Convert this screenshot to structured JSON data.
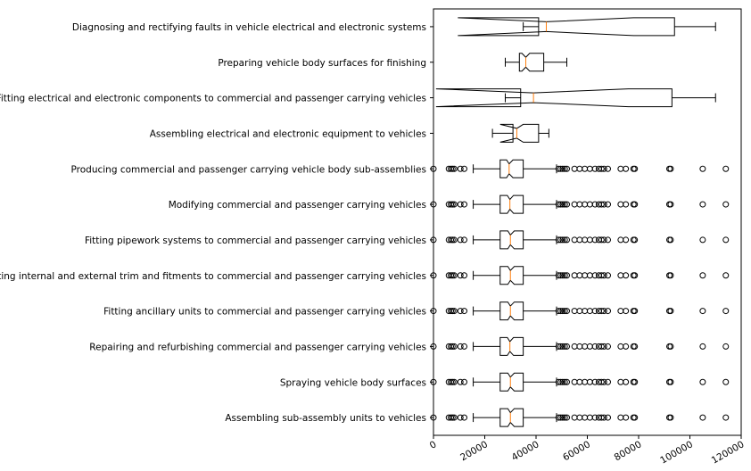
{
  "chart_data": {
    "type": "boxplot",
    "orientation": "horizontal",
    "notched": true,
    "xlim": [
      0,
      120000
    ],
    "x_ticks": [
      0,
      20000,
      40000,
      60000,
      80000,
      100000,
      120000
    ],
    "x_tick_labels": [
      "0",
      "20000",
      "40000",
      "60000",
      "80000",
      "100000",
      "120000"
    ],
    "x_tick_rotation": 30,
    "grid": false,
    "legend": "none",
    "colors": {
      "box": "#000000",
      "median": "#ff7f0e",
      "flier": "#000000"
    },
    "categories": [
      "Diagnosing and rectifying faults in vehicle electrical and electronic systems",
      "Preparing vehicle body surfaces for finishing",
      "Fitting electrical and electronic components to commercial and passenger carrying vehicles",
      "Assembling electrical and electronic equipment to vehicles",
      "Producing commercial and passenger carrying vehicle body sub-assemblies",
      "Modifying commercial and passenger carrying vehicles",
      "Fitting pipework systems to commercial and passenger carrying vehicles",
      "Fitting internal and external trim and fitments to commercial and passenger carrying vehicles",
      "Fitting ancillary units to commercial and passenger carrying vehicles",
      "Repairing and refurbishing commercial and passenger carrying vehicles",
      "Spraying vehicle body surfaces",
      "Assembling sub-assembly units to vehicles"
    ],
    "boxes": [
      {
        "whislo": 35000,
        "q1": 41000,
        "med": 44000,
        "q3": 94000,
        "whishi": 110000,
        "notch_lo": 9500,
        "notch_hi": 78000,
        "fliers": []
      },
      {
        "whislo": 28000,
        "q1": 33500,
        "med": 36000,
        "q3": 43000,
        "whishi": 52000,
        "notch_lo": 34500,
        "notch_hi": 37500,
        "fliers": []
      },
      {
        "whislo": 28000,
        "q1": 34000,
        "med": 39000,
        "q3": 93000,
        "whishi": 110000,
        "notch_lo": 1000,
        "notch_hi": 76000,
        "fliers": []
      },
      {
        "whislo": 23000,
        "q1": 31000,
        "med": 32500,
        "q3": 41000,
        "whishi": 45000,
        "notch_lo": 26000,
        "notch_hi": 35000,
        "fliers": []
      },
      {
        "whislo": 15500,
        "q1": 26000,
        "med": 29500,
        "q3": 35000,
        "whishi": 48000,
        "notch_lo": 28500,
        "notch_hi": 31000,
        "fliers": [
          0,
          6000,
          6800,
          7400,
          8100,
          10500,
          12000,
          48800,
          49600,
          50400,
          51200,
          52000,
          55000,
          57000,
          59000,
          61000,
          63000,
          64500,
          65500,
          66500,
          68000,
          73000,
          75000,
          78000,
          78500,
          92000,
          92500,
          105000,
          114000
        ]
      },
      {
        "whislo": 15500,
        "q1": 26000,
        "med": 29800,
        "q3": 35000,
        "whishi": 48000,
        "notch_lo": 28800,
        "notch_hi": 31200,
        "fliers": [
          0,
          6000,
          6800,
          7400,
          8100,
          10500,
          12000,
          48800,
          49600,
          50400,
          51200,
          52000,
          55000,
          57000,
          59000,
          61000,
          63000,
          64500,
          65500,
          66500,
          68000,
          73000,
          75000,
          78000,
          78500,
          92000,
          92500,
          105000,
          114000
        ]
      },
      {
        "whislo": 15500,
        "q1": 26000,
        "med": 30000,
        "q3": 35000,
        "whishi": 48000,
        "notch_lo": 29000,
        "notch_hi": 31500,
        "fliers": [
          0,
          6000,
          6800,
          7400,
          8100,
          10500,
          12000,
          48800,
          49600,
          50400,
          51200,
          52000,
          55000,
          57000,
          59000,
          61000,
          63000,
          64500,
          65500,
          66500,
          68000,
          73000,
          75000,
          78000,
          78500,
          92000,
          92500,
          105000,
          114000
        ]
      },
      {
        "whislo": 15500,
        "q1": 26000,
        "med": 30000,
        "q3": 35000,
        "whishi": 48000,
        "notch_lo": 29000,
        "notch_hi": 31500,
        "fliers": [
          0,
          6000,
          6800,
          7400,
          8100,
          10500,
          12000,
          48800,
          49600,
          50400,
          51200,
          52000,
          55000,
          57000,
          59000,
          61000,
          63000,
          64500,
          65500,
          66500,
          68000,
          73000,
          75000,
          78000,
          78500,
          92000,
          92500,
          105000,
          114000
        ]
      },
      {
        "whislo": 15500,
        "q1": 26000,
        "med": 30000,
        "q3": 35000,
        "whishi": 48000,
        "notch_lo": 29000,
        "notch_hi": 31500,
        "fliers": [
          0,
          6000,
          6800,
          7400,
          8100,
          10500,
          12000,
          48800,
          49600,
          50400,
          51200,
          52000,
          55000,
          57000,
          59000,
          61000,
          63000,
          64500,
          65500,
          66500,
          68000,
          73000,
          75000,
          78000,
          78500,
          92000,
          92500,
          105000,
          114000
        ]
      },
      {
        "whislo": 15500,
        "q1": 26000,
        "med": 29800,
        "q3": 35000,
        "whishi": 48000,
        "notch_lo": 28800,
        "notch_hi": 31200,
        "fliers": [
          0,
          6000,
          6800,
          7400,
          8100,
          10500,
          12000,
          48800,
          49600,
          50400,
          51200,
          52000,
          55000,
          57000,
          59000,
          61000,
          63000,
          64500,
          65500,
          66500,
          68000,
          73000,
          75000,
          78000,
          78500,
          92000,
          92500,
          105000,
          114000
        ]
      },
      {
        "whislo": 15500,
        "q1": 26000,
        "med": 30000,
        "q3": 35000,
        "whishi": 48000,
        "notch_lo": 29000,
        "notch_hi": 31500,
        "fliers": [
          0,
          6000,
          6800,
          7400,
          8100,
          10500,
          12000,
          48800,
          49600,
          50400,
          51200,
          52000,
          55000,
          57000,
          59000,
          61000,
          63000,
          64500,
          65500,
          66500,
          68000,
          73000,
          75000,
          78000,
          78500,
          92000,
          92500,
          105000,
          114000
        ]
      },
      {
        "whislo": 15500,
        "q1": 26000,
        "med": 30000,
        "q3": 35000,
        "whishi": 48000,
        "notch_lo": 29000,
        "notch_hi": 31500,
        "fliers": [
          0,
          6000,
          6800,
          7400,
          8100,
          10500,
          12000,
          48800,
          49600,
          50400,
          51200,
          52000,
          55000,
          57000,
          59000,
          61000,
          63000,
          64500,
          65500,
          66500,
          68000,
          73000,
          75000,
          78000,
          78500,
          92000,
          92500,
          105000,
          114000
        ]
      }
    ]
  }
}
